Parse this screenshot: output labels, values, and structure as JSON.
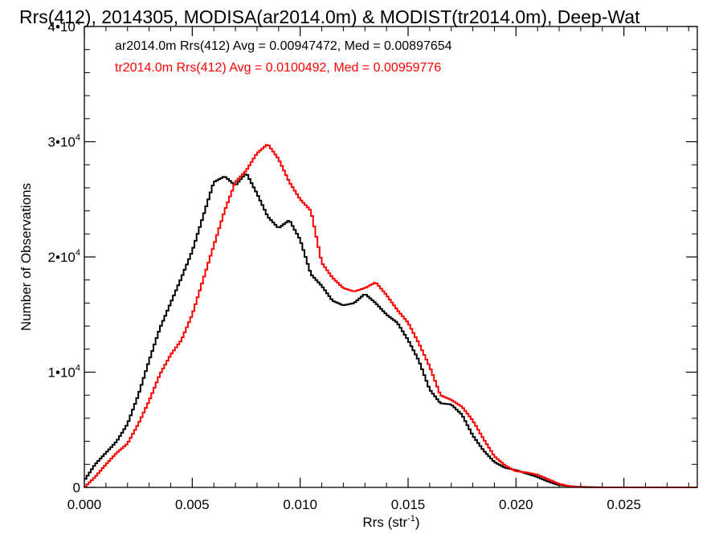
{
  "chart_data": {
    "type": "line",
    "title": "Rrs(412), 2014305, MODISA(ar2014.0m) & MODIST(tr2014.0m), Deep-Wat",
    "xlabel_main": "Rrs (str",
    "xlabel_sup": "-1",
    "xlabel_close": ")",
    "ylabel": "Number of Observations",
    "xlim": [
      0.0,
      0.0284
    ],
    "ylim": [
      0,
      40000
    ],
    "x_ticks": [
      {
        "value": 0.0,
        "label": "0.000"
      },
      {
        "value": 0.005,
        "label": "0.005"
      },
      {
        "value": 0.01,
        "label": "0.010"
      },
      {
        "value": 0.015,
        "label": "0.015"
      },
      {
        "value": 0.02,
        "label": "0.020"
      },
      {
        "value": 0.025,
        "label": "0.025"
      }
    ],
    "y_ticks": [
      {
        "value": 0,
        "label": "0",
        "exp": ""
      },
      {
        "value": 10000,
        "label": "1•10",
        "exp": "4"
      },
      {
        "value": 20000,
        "label": "2•10",
        "exp": "4"
      },
      {
        "value": 30000,
        "label": "3•10",
        "exp": "4"
      },
      {
        "value": 40000,
        "label": "4•10",
        "exp": "4"
      }
    ],
    "legend": [
      {
        "text": "ar2014.0m Rrs(412) Avg = 0.00947472, Med = 0.00897654",
        "color": "#000000"
      },
      {
        "text": "tr2014.0m Rrs(412) Avg = 0.0100492, Med = 0.00959776",
        "color": "#ff0000"
      }
    ],
    "series": [
      {
        "color": "#000000",
        "x": [
          0.0,
          0.0005,
          0.001,
          0.0015,
          0.002,
          0.0025,
          0.003,
          0.0035,
          0.004,
          0.0045,
          0.005,
          0.0055,
          0.006,
          0.0065,
          0.007,
          0.0075,
          0.008,
          0.0085,
          0.009,
          0.0095,
          0.01,
          0.0105,
          0.011,
          0.0115,
          0.012,
          0.0125,
          0.013,
          0.0135,
          0.014,
          0.0145,
          0.015,
          0.0155,
          0.016,
          0.0165,
          0.017,
          0.0175,
          0.018,
          0.0185,
          0.019,
          0.0195,
          0.02,
          0.0205,
          0.021,
          0.0215,
          0.022,
          0.0225,
          0.023,
          0.0235,
          0.024,
          0.025,
          0.026,
          0.027,
          0.0284
        ],
        "y": [
          600,
          2000,
          3000,
          4000,
          5500,
          8000,
          11000,
          13800,
          16000,
          18200,
          20500,
          23500,
          26500,
          27000,
          26200,
          27300,
          25500,
          23500,
          22500,
          23200,
          21500,
          18500,
          17500,
          16200,
          15800,
          16000,
          16800,
          16000,
          15000,
          14300,
          12800,
          11000,
          8500,
          7300,
          7200,
          6300,
          4500,
          3200,
          2200,
          1700,
          1500,
          1200,
          900,
          500,
          200,
          100,
          50,
          20,
          0,
          0,
          0,
          0,
          0
        ]
      },
      {
        "color": "#ff0000",
        "x": [
          0.0,
          0.0005,
          0.001,
          0.0015,
          0.002,
          0.0025,
          0.003,
          0.0035,
          0.004,
          0.0045,
          0.005,
          0.0055,
          0.006,
          0.0065,
          0.007,
          0.0075,
          0.008,
          0.0085,
          0.009,
          0.0095,
          0.01,
          0.0105,
          0.011,
          0.0115,
          0.012,
          0.0125,
          0.013,
          0.0135,
          0.014,
          0.0145,
          0.015,
          0.0155,
          0.016,
          0.0165,
          0.017,
          0.0175,
          0.018,
          0.0185,
          0.019,
          0.0195,
          0.02,
          0.0205,
          0.021,
          0.0215,
          0.022,
          0.0225,
          0.023,
          0.0235,
          0.024,
          0.025,
          0.026,
          0.027,
          0.0284
        ],
        "y": [
          0,
          900,
          2000,
          3000,
          3800,
          5500,
          7500,
          9800,
          11500,
          12800,
          15000,
          18000,
          21000,
          24000,
          26500,
          27500,
          29000,
          29800,
          28500,
          26500,
          25000,
          24000,
          19500,
          18200,
          17300,
          17000,
          17300,
          17800,
          16700,
          15400,
          14300,
          12500,
          10500,
          8000,
          7600,
          7000,
          5800,
          4200,
          2700,
          1900,
          1400,
          1300,
          1100,
          700,
          300,
          100,
          30,
          0,
          0,
          0,
          0,
          0,
          0
        ]
      }
    ]
  }
}
